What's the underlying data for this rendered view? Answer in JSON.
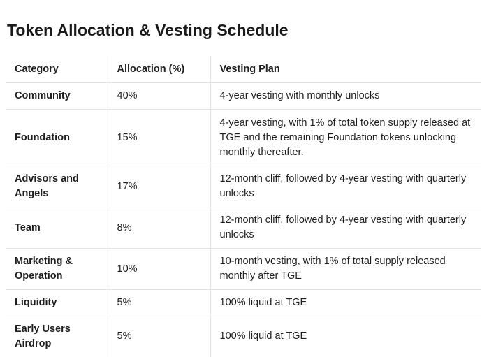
{
  "title": "Token Allocation & Vesting Schedule",
  "table": {
    "headers": [
      "Category",
      "Allocation (%)",
      "Vesting Plan"
    ],
    "rows": [
      [
        "Community",
        "40%",
        "4-year vesting with monthly unlocks"
      ],
      [
        "Foundation",
        "15%",
        "4-year vesting, with 1% of total token supply released at TGE and the remaining Foundation tokens unlocking monthly thereafter."
      ],
      [
        "Advisors and Angels",
        "17%",
        "12-month cliff, followed by 4-year vesting with quarterly unlocks"
      ],
      [
        "Team",
        "8%",
        "12-month cliff, followed by 4-year vesting with quarterly unlocks"
      ],
      [
        "Marketing & Operation",
        "10%",
        "10-month vesting, with 1% of total supply released monthly after TGE"
      ],
      [
        "Liquidity",
        "5%",
        "100% liquid at TGE"
      ],
      [
        "Early Users Airdrop",
        "5%",
        "100% liquid at TGE"
      ]
    ]
  }
}
